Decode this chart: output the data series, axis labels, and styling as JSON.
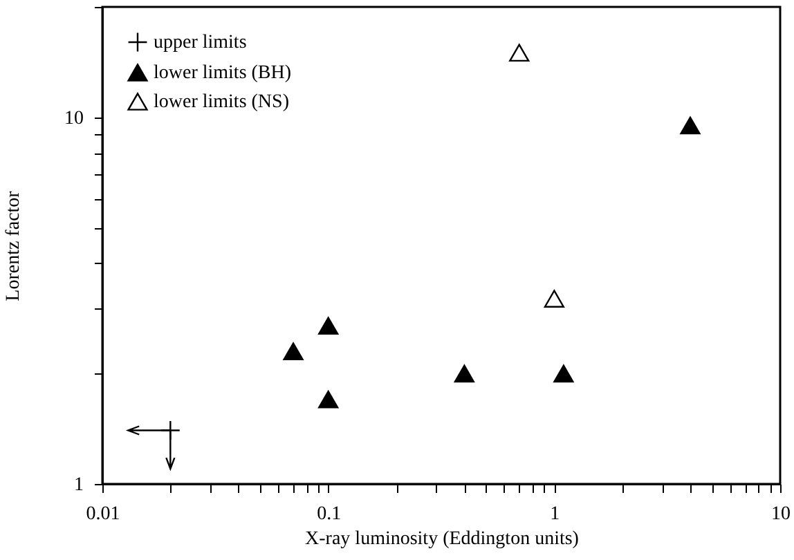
{
  "chart_data": {
    "type": "scatter",
    "xlabel": "X-ray luminosity (Eddington units)",
    "ylabel": "Lorentz factor",
    "log": "xy",
    "xlim": [
      0.01,
      10
    ],
    "ylim": [
      1,
      20
    ],
    "xticks": [
      0.01,
      {
        "value": 0.02,
        "label": null
      },
      {
        "value": 0.03,
        "label": null
      },
      {
        "value": 0.04,
        "label": null
      },
      {
        "value": 0.05,
        "label": null
      },
      {
        "value": 0.06,
        "label": null
      },
      {
        "value": 0.07,
        "label": null
      },
      {
        "value": 0.08,
        "label": null
      },
      {
        "value": 0.09,
        "label": null
      },
      0.1,
      {
        "value": 0.2,
        "label": null
      },
      {
        "value": 0.3,
        "label": null
      },
      {
        "value": 0.4,
        "label": null
      },
      {
        "value": 0.5,
        "label": null
      },
      {
        "value": 0.6,
        "label": null
      },
      {
        "value": 0.7,
        "label": null
      },
      {
        "value": 0.8,
        "label": null
      },
      {
        "value": 0.9,
        "label": null
      },
      1,
      {
        "value": 2,
        "label": null
      },
      {
        "value": 3,
        "label": null
      },
      {
        "value": 4,
        "label": null
      },
      {
        "value": 5,
        "label": null
      },
      {
        "value": 6,
        "label": null
      },
      {
        "value": 7,
        "label": null
      },
      {
        "value": 8,
        "label": null
      },
      {
        "value": 9,
        "label": null
      },
      10
    ],
    "yticks": [
      1,
      {
        "value": 2,
        "label": null
      },
      {
        "value": 3,
        "label": null
      },
      {
        "value": 4,
        "label": null
      },
      {
        "value": 5,
        "label": null
      },
      {
        "value": 6,
        "label": null
      },
      {
        "value": 7,
        "label": null
      },
      {
        "value": 8,
        "label": null
      },
      {
        "value": 9,
        "label": null
      },
      10,
      {
        "value": 20,
        "label": null
      }
    ],
    "grid": false,
    "legend": "top left",
    "series": [
      {
        "name": "upper limits",
        "color": "#000000",
        "marker": "cross",
        "x": [
          0.02
        ],
        "values": [
          1.4
        ],
        "errors": [
          [
            1.1,
            1.4
          ]
        ],
        "xerrors": [
          [
            0.013,
            0.02
          ]
        ]
      },
      {
        "name": "lower limits (BH)",
        "color": "#000000",
        "marker": "triangle",
        "x": [
          0.07,
          0.1,
          0.1,
          0.4,
          1.1,
          4
        ],
        "values": [
          2.3,
          2.7,
          1.7,
          2.0,
          2.0,
          9.5
        ]
      },
      {
        "name": "lower limits (NS)",
        "color": "#ffffff",
        "marker": "triangle",
        "x": [
          0.7,
          1.0
        ],
        "values": [
          15,
          3.2
        ]
      }
    ]
  }
}
